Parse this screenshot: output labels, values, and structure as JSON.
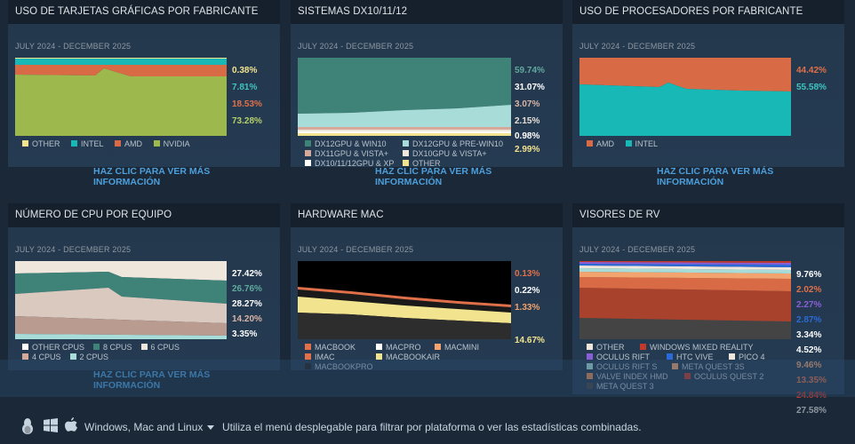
{
  "panels": {
    "gpu": {
      "title": "USO DE TARJETAS GRÁFICAS POR FABRICANTE",
      "date": "JULY 2024 - DECEMBER 2025",
      "values": [
        {
          "text": "0.38%",
          "color": "#f2e38e"
        },
        {
          "text": "7.81%",
          "color": "#3fc4c0"
        },
        {
          "text": "18.53%",
          "color": "#e0704a"
        },
        {
          "text": "73.28%",
          "color": "#b6cf6a"
        }
      ],
      "legend": [
        {
          "label": "OTHER",
          "color": "#f2e38e"
        },
        {
          "label": "INTEL",
          "color": "#17b8b5"
        },
        {
          "label": "AMD",
          "color": "#d86a45"
        },
        {
          "label": "NVIDIA",
          "color": "#9db84d"
        }
      ],
      "more": "HAZ CLIC PARA VER MÁS INFORMACIÓN"
    },
    "dx": {
      "title": "SISTEMAS DX10/11/12",
      "date": "JULY 2024 - DECEMBER 2025",
      "values": [
        {
          "text": "59.74%",
          "color": "#5fa99e"
        },
        {
          "text": "31.07%",
          "color": "#ffffff"
        },
        {
          "text": "3.07%",
          "color": "#d9b4a6"
        },
        {
          "text": "2.15%",
          "color": "#e8e1d8"
        },
        {
          "text": "0.98%",
          "color": "#ffffff"
        },
        {
          "text": "2.99%",
          "color": "#f2e38e"
        }
      ],
      "legend": [
        {
          "label": "DX12GPU & WIN10",
          "color": "#3f8378"
        },
        {
          "label": "DX12GPU & PRE-WIN10",
          "color": "#a7dcd8"
        },
        {
          "label": "DX11GPU & VISTA+",
          "color": "#d6a89a"
        },
        {
          "label": "DX10GPU & VISTA+",
          "color": "#efe6dc"
        },
        {
          "label": "DX10/11/12GPU & XP",
          "color": "#ffffff"
        },
        {
          "label": "OTHER",
          "color": "#f2e38e"
        }
      ],
      "more": "HAZ CLIC PARA VER MÁS INFORMACIÓN"
    },
    "cpu": {
      "title": "USO DE PROCESADORES POR FABRICANTE",
      "date": "JULY 2024 - DECEMBER 2025",
      "values": [
        {
          "text": "44.42%",
          "color": "#e0704a"
        },
        {
          "text": "55.58%",
          "color": "#3fc4c0"
        }
      ],
      "legend": [
        {
          "label": "AMD",
          "color": "#d86a45"
        },
        {
          "label": "INTEL",
          "color": "#17b8b5"
        }
      ],
      "more": "HAZ CLIC PARA VER MÁS INFORMACIÓN"
    },
    "cores": {
      "title": "NÚMERO DE CPU POR EQUIPO",
      "date": "JULY 2024 - DECEMBER 2025",
      "values": [
        {
          "text": "27.42%",
          "color": "#ffffff"
        },
        {
          "text": "26.76%",
          "color": "#5fa99e"
        },
        {
          "text": "28.27%",
          "color": "#ffffff"
        },
        {
          "text": "14.20%",
          "color": "#d9b4a6"
        },
        {
          "text": "3.35%",
          "color": "#ffffff"
        }
      ],
      "legend": [
        {
          "label": "OTHER CPUS",
          "color": "#ffffff"
        },
        {
          "label": "8 CPUS",
          "color": "#3f8378"
        },
        {
          "label": "6 CPUS",
          "color": "#efe6dc"
        },
        {
          "label": "4 CPUS",
          "color": "#d6a89a"
        },
        {
          "label": "2 CPUS",
          "color": "#a7dcd8"
        }
      ],
      "more": "HAZ CLIC PARA VER MÁS INFORMACIÓN"
    },
    "mac": {
      "title": "HARDWARE MAC",
      "date": "JULY 2024 - DECEMBER 2025",
      "values": [
        {
          "text": "0.13%",
          "color": "#e0704a"
        },
        {
          "text": "0.22%",
          "color": "#ffffff"
        },
        {
          "text": "1.33%",
          "color": "#f2a36e"
        },
        {
          "text": "14.67%",
          "color": "#f2e38e"
        }
      ],
      "legend": [
        {
          "label": "MACBOOK",
          "color": "#e0704a"
        },
        {
          "label": "MACPRO",
          "color": "#ffffff"
        },
        {
          "label": "MACMINI",
          "color": "#f2a36e"
        },
        {
          "label": "IMAC",
          "color": "#e0704a"
        },
        {
          "label": "MACBOOKAIR",
          "color": "#f2e38e"
        },
        {
          "label": "MACBOOKPRO",
          "color": "#222222"
        }
      ]
    },
    "vr": {
      "title": "VISORES DE RV",
      "date": "JULY 2024 - DECEMBER 2025",
      "values": [
        {
          "text": "9.76%",
          "color": "#ffffff"
        },
        {
          "text": "2.02%",
          "color": "#e0704a"
        },
        {
          "text": "2.27%",
          "color": "#8a5fd6"
        },
        {
          "text": "2.87%",
          "color": "#2b6ad9"
        },
        {
          "text": "3.34%",
          "color": "#ffffff"
        },
        {
          "text": "4.52%",
          "color": "#ffffff"
        },
        {
          "text": "9.46%",
          "color": "#f2a36e"
        },
        {
          "text": "13.35%",
          "color": "#e0704a"
        },
        {
          "text": "24.84%",
          "color": "#c0392b"
        },
        {
          "text": "27.58%",
          "color": "#8f98a0"
        }
      ],
      "legend": [
        {
          "label": "OTHER",
          "color": "#efe6dc"
        },
        {
          "label": "WINDOWS MIXED REALITY",
          "color": "#c0392b"
        },
        {
          "label": "OCULUS RIFT",
          "color": "#8a5fd6"
        },
        {
          "label": "HTC VIVE",
          "color": "#2b6ad9"
        },
        {
          "label": "PICO 4",
          "color": "#efe6dc"
        },
        {
          "label": "OCULUS RIFT S",
          "color": "#a7dcd8"
        },
        {
          "label": "META QUEST 3S",
          "color": "#f2a36e"
        },
        {
          "label": "VALVE INDEX HMD",
          "color": "#e08a55"
        },
        {
          "label": "OCULUS QUEST 2",
          "color": "#c0392b"
        },
        {
          "label": "META QUEST 3",
          "color": "#444444"
        }
      ]
    }
  },
  "footer": {
    "platform_label": "Windows, Mac and Linux",
    "hint": "Utiliza el menú desplegable para filtrar por plataforma o ver las estadísticas combinadas."
  },
  "icons": [
    "linux-icon",
    "windows-icon",
    "apple-icon",
    "dropdown-caret-icon"
  ]
}
